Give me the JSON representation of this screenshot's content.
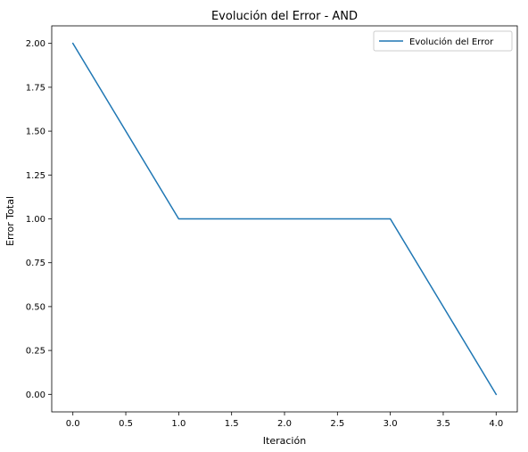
{
  "chart_data": {
    "type": "line",
    "title": "Evolución del Error - AND",
    "xlabel": "Iteración",
    "ylabel": "Error Total",
    "xlim": [
      -0.2,
      4.2
    ],
    "ylim": [
      -0.1,
      2.1
    ],
    "xticks": [
      0.0,
      0.5,
      1.0,
      1.5,
      2.0,
      2.5,
      3.0,
      3.5,
      4.0
    ],
    "xtick_labels": [
      "0.0",
      "0.5",
      "1.0",
      "1.5",
      "2.0",
      "2.5",
      "3.0",
      "3.5",
      "4.0"
    ],
    "yticks": [
      0.0,
      0.25,
      0.5,
      0.75,
      1.0,
      1.25,
      1.5,
      1.75,
      2.0
    ],
    "ytick_labels": [
      "0.00",
      "0.25",
      "0.50",
      "0.75",
      "1.00",
      "1.25",
      "1.50",
      "1.75",
      "2.00"
    ],
    "grid": false,
    "legend_position": "top-right",
    "series": [
      {
        "name": "Evolución del Error",
        "color": "#1f77b4",
        "x": [
          0,
          1,
          2,
          3,
          4
        ],
        "y": [
          2,
          1,
          1,
          1,
          0
        ]
      }
    ]
  }
}
